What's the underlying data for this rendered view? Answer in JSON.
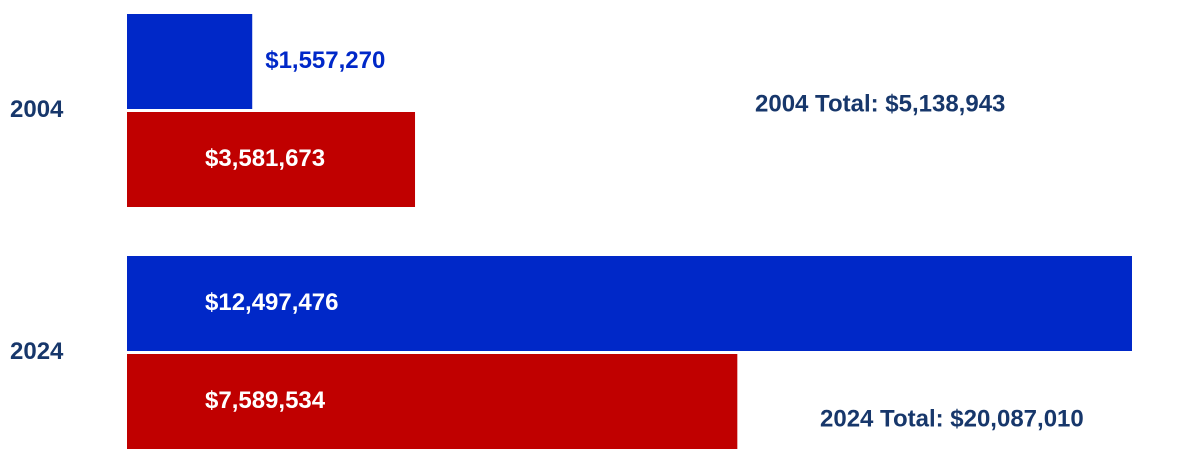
{
  "chart_data": {
    "type": "bar",
    "orientation": "horizontal",
    "categories": [
      "2004",
      "2024"
    ],
    "series": [
      {
        "color": "#0028c8",
        "values": [
          1557270,
          12497476
        ],
        "value_labels": [
          "$1,557,270",
          "$12,497,476"
        ]
      },
      {
        "color": "#c00000",
        "values": [
          3581673,
          7589534
        ],
        "value_labels": [
          "$3,581,673",
          "$7,589,534"
        ]
      }
    ],
    "annotations": [
      "2004 Total: $5,138,943",
      "2024 Total: $20,087,010"
    ]
  }
}
